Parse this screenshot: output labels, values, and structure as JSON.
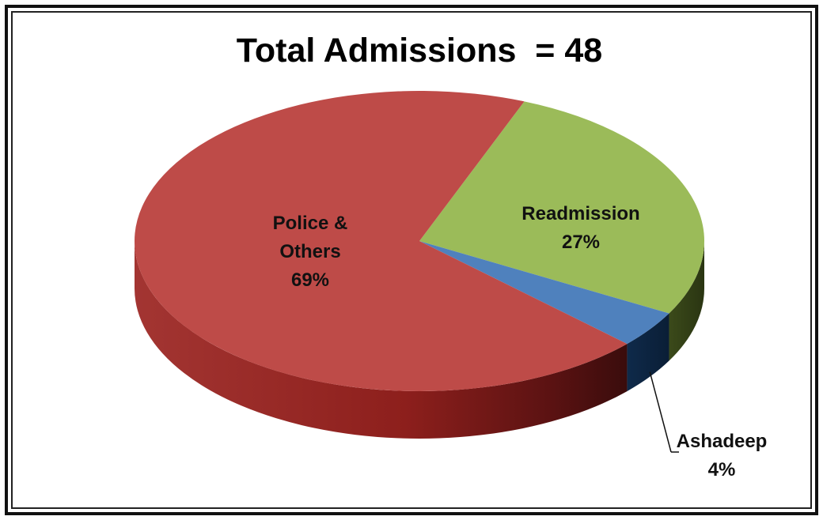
{
  "chart_data": {
    "type": "pie",
    "title": "Total Admissions  = 48",
    "slices": [
      {
        "label": "Police & Others",
        "label_lines": [
          "Police &",
          "Others"
        ],
        "percent_label": "69%",
        "value": 69,
        "color": "#BE4B48"
      },
      {
        "label": "Readmission",
        "label_lines": [
          "Readmission"
        ],
        "percent_label": "27%",
        "value": 27,
        "color": "#9BBB59"
      },
      {
        "label": "Ashadeep",
        "label_lines": [
          "Ashadeep"
        ],
        "percent_label": "4%",
        "value": 4,
        "color": "#4F81BD"
      }
    ],
    "style": "3d"
  }
}
